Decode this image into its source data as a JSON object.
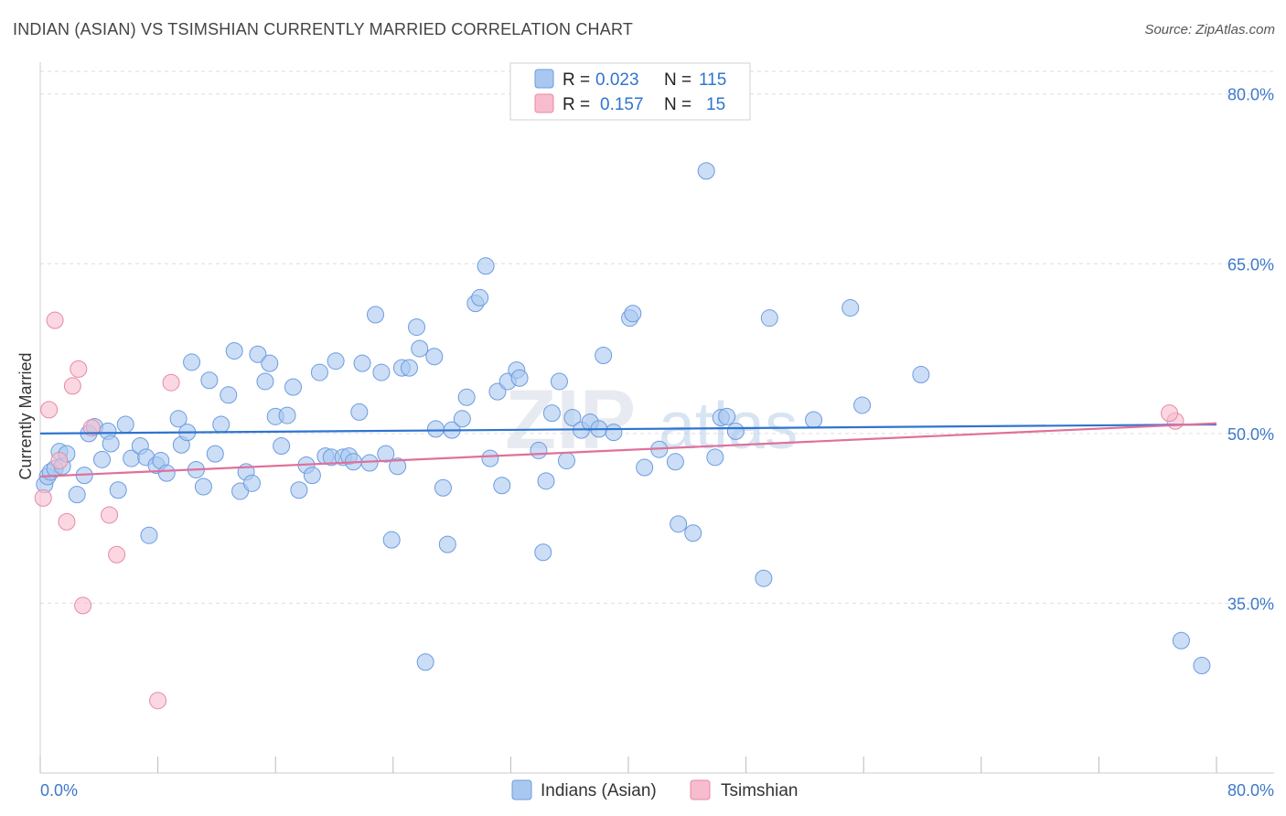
{
  "header": {
    "title": "INDIAN (ASIAN) VS TSIMSHIAN CURRENTLY MARRIED CORRELATION CHART",
    "source": "Source: ZipAtlas.com"
  },
  "watermark": {
    "text_zip": "ZIP",
    "text_atlas": "atlas"
  },
  "colors": {
    "blue_fill": "#a9c8f0",
    "blue_stroke": "#6d9be0",
    "blue_line": "#2f74d0",
    "pink_fill": "#f7bccd",
    "pink_stroke": "#e889a6",
    "pink_line": "#e0709a",
    "tick_text": "#3e78cc",
    "grid": "#dddddd"
  },
  "legend": {
    "items": [
      {
        "r_label": "R =",
        "r_value": "0.023",
        "n_label": "N =",
        "n_value": "115",
        "series": "blue"
      },
      {
        "r_label": "R =",
        "r_value": "0.157",
        "n_label": "N =",
        "n_value": "15",
        "series": "pink"
      }
    ]
  },
  "bottom_legend": [
    "Indians (Asian)",
    "Tsimshian"
  ],
  "chart_data": {
    "type": "scatter",
    "xlabel": "",
    "ylabel": "Currently Married",
    "xlim": [
      0,
      80
    ],
    "ylim": [
      20,
      82
    ],
    "x_tick_labels": [
      {
        "value": 0,
        "label": "0.0%"
      },
      {
        "value": 80,
        "label": "80.0%"
      }
    ],
    "y_tick_labels": [
      {
        "value": 35,
        "label": "35.0%"
      },
      {
        "value": 50,
        "label": "50.0%"
      },
      {
        "value": 65,
        "label": "65.0%"
      },
      {
        "value": 80,
        "label": "80.0%"
      }
    ],
    "grid": true,
    "legend_position": "top-center",
    "series": [
      {
        "name": "Indians (Asian)",
        "color": "#a9c8f0",
        "trend": {
          "x": [
            0,
            80
          ],
          "y": [
            50.0,
            50.8
          ]
        },
        "points": [
          [
            0.3,
            45.5
          ],
          [
            0.5,
            46.2
          ],
          [
            0.7,
            46.6
          ],
          [
            1.0,
            46.9
          ],
          [
            1.3,
            48.4
          ],
          [
            1.5,
            47.1
          ],
          [
            1.8,
            48.2
          ],
          [
            2.5,
            44.6
          ],
          [
            3.0,
            46.3
          ],
          [
            3.3,
            50.0
          ],
          [
            3.7,
            50.6
          ],
          [
            4.2,
            47.7
          ],
          [
            4.6,
            50.2
          ],
          [
            4.8,
            49.1
          ],
          [
            5.3,
            45.0
          ],
          [
            5.8,
            50.8
          ],
          [
            6.2,
            47.8
          ],
          [
            6.8,
            48.9
          ],
          [
            7.2,
            47.9
          ],
          [
            7.4,
            41.0
          ],
          [
            7.9,
            47.2
          ],
          [
            8.2,
            47.6
          ],
          [
            8.6,
            46.5
          ],
          [
            9.4,
            51.3
          ],
          [
            9.6,
            49.0
          ],
          [
            10.0,
            50.1
          ],
          [
            10.3,
            56.3
          ],
          [
            10.6,
            46.8
          ],
          [
            11.1,
            45.3
          ],
          [
            11.5,
            54.7
          ],
          [
            11.9,
            48.2
          ],
          [
            12.3,
            50.8
          ],
          [
            12.8,
            53.4
          ],
          [
            13.2,
            57.3
          ],
          [
            13.6,
            44.9
          ],
          [
            14.0,
            46.6
          ],
          [
            14.4,
            45.6
          ],
          [
            14.8,
            57.0
          ],
          [
            15.3,
            54.6
          ],
          [
            15.6,
            56.2
          ],
          [
            16.0,
            51.5
          ],
          [
            16.4,
            48.9
          ],
          [
            16.8,
            51.6
          ],
          [
            17.2,
            54.1
          ],
          [
            17.6,
            45.0
          ],
          [
            18.1,
            47.2
          ],
          [
            18.5,
            46.3
          ],
          [
            19.0,
            55.4
          ],
          [
            19.4,
            48.0
          ],
          [
            19.8,
            47.9
          ],
          [
            20.1,
            56.4
          ],
          [
            20.6,
            47.9
          ],
          [
            21.0,
            48.0
          ],
          [
            21.3,
            47.5
          ],
          [
            21.7,
            51.9
          ],
          [
            21.9,
            56.2
          ],
          [
            22.4,
            47.4
          ],
          [
            22.8,
            60.5
          ],
          [
            23.2,
            55.4
          ],
          [
            23.5,
            48.2
          ],
          [
            23.9,
            40.6
          ],
          [
            24.3,
            47.1
          ],
          [
            24.6,
            55.8
          ],
          [
            25.1,
            55.8
          ],
          [
            25.6,
            59.4
          ],
          [
            25.8,
            57.5
          ],
          [
            26.2,
            29.8
          ],
          [
            26.8,
            56.8
          ],
          [
            26.9,
            50.4
          ],
          [
            27.4,
            45.2
          ],
          [
            27.7,
            40.2
          ],
          [
            28.0,
            50.3
          ],
          [
            28.7,
            51.3
          ],
          [
            29.0,
            53.2
          ],
          [
            29.6,
            61.5
          ],
          [
            29.9,
            62.0
          ],
          [
            30.3,
            64.8
          ],
          [
            30.6,
            47.8
          ],
          [
            31.1,
            53.7
          ],
          [
            31.4,
            45.4
          ],
          [
            31.8,
            54.6
          ],
          [
            32.4,
            55.6
          ],
          [
            32.6,
            54.9
          ],
          [
            33.9,
            48.5
          ],
          [
            34.2,
            39.5
          ],
          [
            34.4,
            45.8
          ],
          [
            34.8,
            51.8
          ],
          [
            35.3,
            54.6
          ],
          [
            35.8,
            47.6
          ],
          [
            36.2,
            51.4
          ],
          [
            36.8,
            50.3
          ],
          [
            37.4,
            51.0
          ],
          [
            38.0,
            50.4
          ],
          [
            38.3,
            56.9
          ],
          [
            39.0,
            50.1
          ],
          [
            40.1,
            60.2
          ],
          [
            40.3,
            60.6
          ],
          [
            41.1,
            47.0
          ],
          [
            42.1,
            48.6
          ],
          [
            43.2,
            47.5
          ],
          [
            43.4,
            42.0
          ],
          [
            44.4,
            41.2
          ],
          [
            45.3,
            73.2
          ],
          [
            45.9,
            47.9
          ],
          [
            46.3,
            51.4
          ],
          [
            46.7,
            51.5
          ],
          [
            47.3,
            50.2
          ],
          [
            49.2,
            37.2
          ],
          [
            49.6,
            60.2
          ],
          [
            52.6,
            51.2
          ],
          [
            55.1,
            61.1
          ],
          [
            55.9,
            52.5
          ],
          [
            59.9,
            55.2
          ],
          [
            79.0,
            29.5
          ],
          [
            77.6,
            31.7
          ]
        ]
      },
      {
        "name": "Tsimshian",
        "color": "#f7bccd",
        "trend": {
          "x": [
            0,
            80
          ],
          "y": [
            46.2,
            50.9
          ]
        },
        "points": [
          [
            0.2,
            44.3
          ],
          [
            0.6,
            52.1
          ],
          [
            1.0,
            60.0
          ],
          [
            1.3,
            47.6
          ],
          [
            1.8,
            42.2
          ],
          [
            2.2,
            54.2
          ],
          [
            2.6,
            55.7
          ],
          [
            2.9,
            34.8
          ],
          [
            3.5,
            50.5
          ],
          [
            4.7,
            42.8
          ],
          [
            5.2,
            39.3
          ],
          [
            8.0,
            26.4
          ],
          [
            8.9,
            54.5
          ],
          [
            77.2,
            51.1
          ],
          [
            76.8,
            51.8
          ]
        ]
      }
    ]
  }
}
